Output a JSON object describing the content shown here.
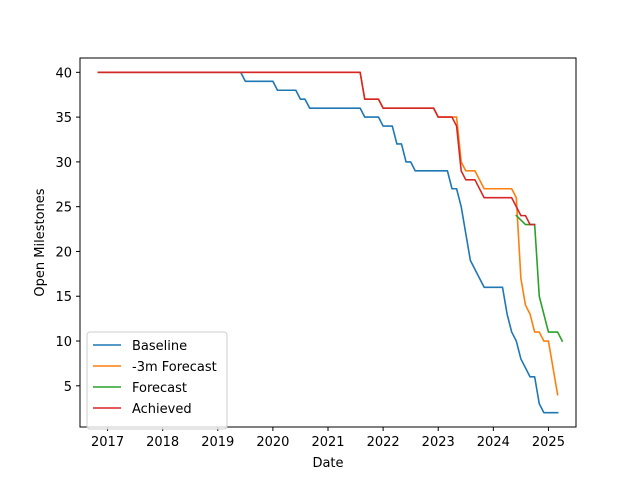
{
  "chart_data": {
    "type": "line",
    "title": "",
    "xlabel": "Date",
    "ylabel": "Open Milestones",
    "xlim": [
      "2016-07-01",
      "2025-07-01"
    ],
    "ylim": [
      0.4,
      41.6
    ],
    "x_ticks": [
      "2017",
      "2018",
      "2019",
      "2020",
      "2021",
      "2022",
      "2023",
      "2024",
      "2025"
    ],
    "y_ticks": [
      5,
      10,
      15,
      20,
      25,
      30,
      35,
      40
    ],
    "grid": false,
    "legend_position": "lower-left",
    "series": [
      {
        "name": "Baseline",
        "color": "#1f77b4",
        "points": [
          [
            "2016-11-01",
            40
          ],
          [
            "2019-06-01",
            40
          ],
          [
            "2019-07-01",
            39
          ],
          [
            "2020-01-01",
            39
          ],
          [
            "2020-02-01",
            38
          ],
          [
            "2020-06-01",
            38
          ],
          [
            "2020-07-01",
            37
          ],
          [
            "2020-08-01",
            37
          ],
          [
            "2020-09-01",
            36
          ],
          [
            "2021-08-01",
            36
          ],
          [
            "2021-09-01",
            35
          ],
          [
            "2021-12-01",
            35
          ],
          [
            "2022-01-01",
            34
          ],
          [
            "2022-03-01",
            34
          ],
          [
            "2022-04-01",
            32
          ],
          [
            "2022-05-01",
            32
          ],
          [
            "2022-06-01",
            30
          ],
          [
            "2022-07-01",
            30
          ],
          [
            "2022-08-01",
            29
          ],
          [
            "2023-03-01",
            29
          ],
          [
            "2023-04-01",
            27
          ],
          [
            "2023-05-01",
            27
          ],
          [
            "2023-06-01",
            25
          ],
          [
            "2023-07-01",
            22
          ],
          [
            "2023-08-01",
            19
          ],
          [
            "2023-09-01",
            18
          ],
          [
            "2023-10-01",
            17
          ],
          [
            "2023-11-01",
            16
          ],
          [
            "2024-03-01",
            16
          ],
          [
            "2024-04-01",
            13
          ],
          [
            "2024-05-01",
            11
          ],
          [
            "2024-06-01",
            10
          ],
          [
            "2024-07-01",
            8
          ],
          [
            "2024-08-01",
            7
          ],
          [
            "2024-09-01",
            6
          ],
          [
            "2024-10-01",
            6
          ],
          [
            "2024-11-01",
            3
          ],
          [
            "2024-12-01",
            2
          ],
          [
            "2025-03-01",
            2
          ]
        ]
      },
      {
        "name": "-3m Forecast",
        "color": "#ff7f0e",
        "points": [
          [
            "2016-11-01",
            40
          ],
          [
            "2021-08-01",
            40
          ],
          [
            "2021-09-01",
            37
          ],
          [
            "2021-12-01",
            37
          ],
          [
            "2022-01-01",
            36
          ],
          [
            "2022-12-01",
            36
          ],
          [
            "2023-01-01",
            35
          ],
          [
            "2023-05-01",
            35
          ],
          [
            "2023-06-01",
            30
          ],
          [
            "2023-07-01",
            29
          ],
          [
            "2023-09-01",
            29
          ],
          [
            "2023-11-01",
            27
          ],
          [
            "2024-05-01",
            27
          ],
          [
            "2024-06-01",
            26
          ],
          [
            "2024-07-01",
            17
          ],
          [
            "2024-08-01",
            14
          ],
          [
            "2024-09-01",
            13
          ],
          [
            "2024-10-01",
            11
          ],
          [
            "2024-11-01",
            11
          ],
          [
            "2024-12-01",
            10
          ],
          [
            "2025-01-01",
            10
          ],
          [
            "2025-03-01",
            4
          ]
        ]
      },
      {
        "name": "Forecast",
        "color": "#2ca02c",
        "points": [
          [
            "2024-06-01",
            24
          ],
          [
            "2024-08-01",
            23
          ],
          [
            "2024-10-01",
            23
          ],
          [
            "2024-11-01",
            15
          ],
          [
            "2025-01-01",
            11
          ],
          [
            "2025-03-01",
            11
          ],
          [
            "2025-04-01",
            10
          ]
        ]
      },
      {
        "name": "Achieved",
        "color": "#d62728",
        "points": [
          [
            "2016-11-01",
            40
          ],
          [
            "2021-08-01",
            40
          ],
          [
            "2021-09-01",
            37
          ],
          [
            "2021-12-01",
            37
          ],
          [
            "2022-01-01",
            36
          ],
          [
            "2022-12-01",
            36
          ],
          [
            "2023-01-01",
            35
          ],
          [
            "2023-04-01",
            35
          ],
          [
            "2023-05-01",
            34
          ],
          [
            "2023-06-01",
            29
          ],
          [
            "2023-07-01",
            28
          ],
          [
            "2023-09-01",
            28
          ],
          [
            "2023-11-01",
            26
          ],
          [
            "2024-05-01",
            26
          ],
          [
            "2024-07-01",
            24
          ],
          [
            "2024-08-01",
            24
          ],
          [
            "2024-09-01",
            23
          ],
          [
            "2024-10-01",
            23
          ]
        ]
      }
    ]
  }
}
